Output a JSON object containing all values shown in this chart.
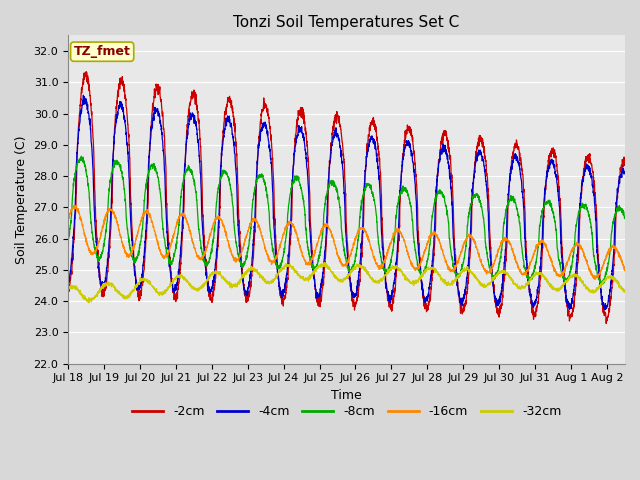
{
  "title": "Tonzi Soil Temperatures Set C",
  "xlabel": "Time",
  "ylabel": "Soil Temperature (C)",
  "annotation": "TZ_fmet",
  "ylim": [
    22.0,
    32.5
  ],
  "yticks": [
    22.0,
    23.0,
    24.0,
    25.0,
    26.0,
    27.0,
    28.0,
    29.0,
    30.0,
    31.0,
    32.0
  ],
  "colors": {
    "-2cm": "#CC0000",
    "-4cm": "#0000CC",
    "-8cm": "#00AA00",
    "-16cm": "#FF8800",
    "-32cm": "#CCCC00"
  },
  "legend_labels": [
    "-2cm",
    "-4cm",
    "-8cm",
    "-16cm",
    "-32cm"
  ],
  "plot_bg_color": "#E8E8E8",
  "fig_bg_color": "#D8D8D8",
  "annotation_bg": "#FFFFCC",
  "annotation_border": "#AAAA00",
  "annotation_text_color": "#880000",
  "n_days": 15.5,
  "title_fontsize": 11,
  "label_fontsize": 9,
  "tick_fontsize": 8,
  "legend_fontsize": 9
}
